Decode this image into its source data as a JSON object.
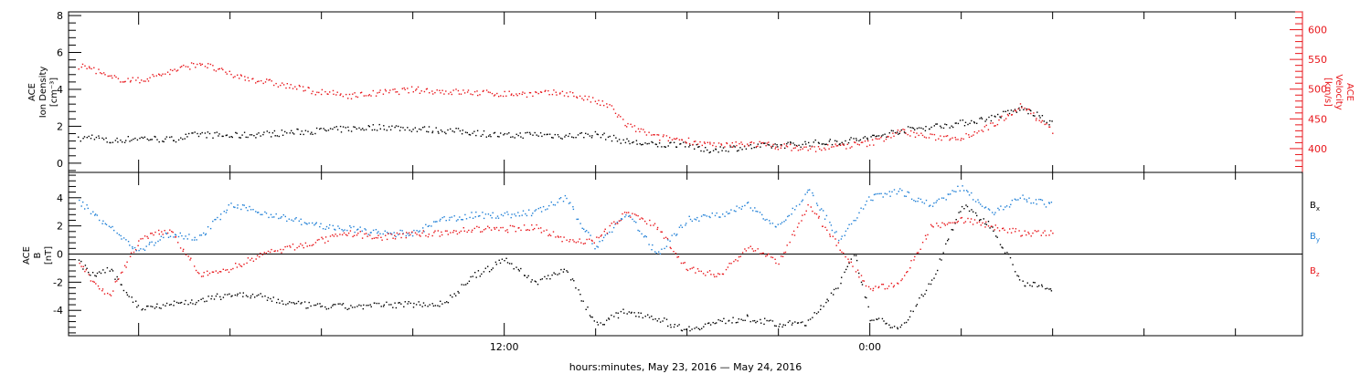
{
  "chart_data": [
    {
      "type": "scatter",
      "panel": "top",
      "left_axis": {
        "label_lines": [
          "ACE",
          "Ion Density",
          "[cm⁻³]"
        ],
        "ylim": [
          -0.5,
          8.2
        ],
        "ticks": [
          0,
          2,
          4,
          6,
          8
        ],
        "tick_labels": [
          "0",
          "2",
          "4",
          "6",
          "8"
        ]
      },
      "right_axis": {
        "label_lines": [
          "ACE",
          "Velocity",
          "[km/s]"
        ],
        "ylim": [
          360,
          630
        ],
        "ticks": [
          400,
          450,
          500,
          550,
          600
        ],
        "tick_labels": [
          "400",
          "450",
          "500",
          "550",
          "600"
        ],
        "color": "#e8161b"
      },
      "series": [
        {
          "name": "Ion Density",
          "axis": "left",
          "color": "#000000",
          "hours": [
            -2,
            -1.5,
            -1,
            0,
            1,
            2,
            3,
            4,
            5,
            6,
            7,
            8,
            9,
            10,
            11,
            12,
            13,
            14,
            15,
            16,
            17,
            18,
            18.5,
            19,
            20,
            21,
            22,
            23,
            24,
            25,
            26,
            27,
            28,
            29,
            29.5,
            30
          ],
          "values": [
            1.3,
            1.5,
            1.2,
            1.4,
            1.3,
            1.6,
            1.5,
            1.6,
            1.7,
            1.8,
            1.9,
            2.0,
            1.9,
            1.8,
            1.7,
            1.5,
            1.6,
            1.5,
            1.6,
            1.2,
            1.0,
            1.1,
            0.7,
            0.8,
            0.9,
            1.0,
            1.1,
            1.2,
            1.4,
            1.8,
            2.0,
            2.2,
            2.5,
            3.0,
            2.6,
            2.1
          ]
        },
        {
          "name": "Velocity",
          "axis": "right",
          "color": "#e8161b",
          "hours": [
            -2,
            -1.5,
            -1,
            0,
            1,
            2,
            3,
            4,
            5,
            6,
            7,
            8,
            9,
            10,
            11,
            12,
            13,
            14,
            15,
            15.5,
            16,
            17,
            18,
            19,
            20,
            21,
            22,
            23,
            24,
            25,
            26,
            27,
            28,
            29,
            29.5,
            30
          ],
          "values": [
            540,
            535,
            520,
            515,
            530,
            545,
            525,
            515,
            505,
            495,
            490,
            495,
            500,
            497,
            495,
            493,
            493,
            495,
            480,
            470,
            440,
            420,
            415,
            405,
            410,
            405,
            400,
            405,
            410,
            430,
            420,
            420,
            440,
            475,
            450,
            430
          ]
        }
      ]
    },
    {
      "type": "scatter",
      "panel": "bottom",
      "left_axis": {
        "label_lines": [
          "ACE",
          "B",
          "[nT]"
        ],
        "ylim": [
          -5.8,
          5.8
        ],
        "ticks": [
          -4,
          -2,
          0,
          2,
          4
        ],
        "tick_labels": [
          "-4",
          "-2",
          "0",
          "2",
          "4"
        ]
      },
      "zero_line": true,
      "series": [
        {
          "name": "B",
          "subscript": "x",
          "color": "#000000",
          "hours": [
            -2,
            -1.5,
            -1,
            0,
            1,
            2,
            3,
            4,
            5,
            6,
            7,
            8,
            9,
            10,
            11,
            11.5,
            12,
            13,
            14,
            15,
            16,
            17,
            17.5,
            18,
            19,
            20,
            21,
            22,
            23,
            23.5,
            24,
            25,
            26,
            27,
            28,
            29,
            30
          ],
          "values": [
            -0.5,
            -1.5,
            -1.0,
            -3.8,
            -3.5,
            -3.3,
            -2.8,
            -3.0,
            -3.5,
            -3.7,
            -3.7,
            -3.6,
            -3.5,
            -3.5,
            -1.5,
            -1.0,
            -0.3,
            -2.0,
            -1.0,
            -5.0,
            -4.0,
            -4.5,
            -5.0,
            -5.3,
            -4.8,
            -4.5,
            -5.0,
            -4.8,
            -2.0,
            0.0,
            -4.5,
            -5.2,
            -2.0,
            3.5,
            2.0,
            -2.0,
            -2.5
          ]
        },
        {
          "name": "B",
          "subscript": "y",
          "color": "#1f7fd6",
          "hours": [
            -2,
            -1.5,
            -1,
            0,
            1,
            2,
            3,
            4,
            5,
            6,
            7,
            8,
            9,
            10,
            11,
            12,
            13,
            14,
            15,
            16,
            17,
            18,
            19,
            20,
            21,
            22,
            23,
            24,
            25,
            26,
            27,
            28,
            29,
            30
          ],
          "values": [
            3.8,
            3.0,
            2.0,
            0.2,
            1.5,
            1.2,
            3.5,
            3.0,
            2.5,
            2.0,
            1.8,
            1.5,
            1.5,
            2.5,
            2.8,
            2.8,
            3.0,
            4.0,
            0.5,
            3.0,
            0.0,
            2.5,
            2.8,
            3.5,
            2.0,
            4.5,
            1.0,
            4.0,
            4.5,
            3.5,
            4.8,
            3.0,
            4.0,
            3.5
          ]
        },
        {
          "name": "B",
          "subscript": "z",
          "color": "#e8161b",
          "hours": [
            -2,
            -1.5,
            -1,
            0,
            1,
            2,
            3,
            4,
            5,
            6,
            7,
            8,
            9,
            10,
            11,
            12,
            13,
            14,
            15,
            16,
            17,
            18,
            19,
            20,
            21,
            22,
            23,
            24,
            25,
            26,
            27,
            28,
            29,
            30
          ],
          "values": [
            -0.5,
            -2.0,
            -3.0,
            1.0,
            1.8,
            -1.5,
            -1.0,
            0.0,
            0.5,
            1.0,
            1.5,
            1.2,
            1.5,
            1.5,
            1.8,
            1.8,
            2.0,
            1.0,
            1.0,
            3.0,
            2.0,
            -1.0,
            -1.5,
            0.5,
            -0.5,
            3.5,
            0.5,
            -2.5,
            -2.0,
            2.0,
            2.5,
            2.0,
            1.5,
            1.5
          ]
        }
      ]
    }
  ],
  "x_axis": {
    "title": "hours:minutes, May 23, 2016 — May 24, 2016",
    "xlim": [
      -2.3,
      38.2
    ],
    "major_ticks": [
      0,
      12,
      24
    ],
    "tick_labels": [
      "",
      "12:00",
      "0:00"
    ],
    "minor_tick_step": 3
  }
}
